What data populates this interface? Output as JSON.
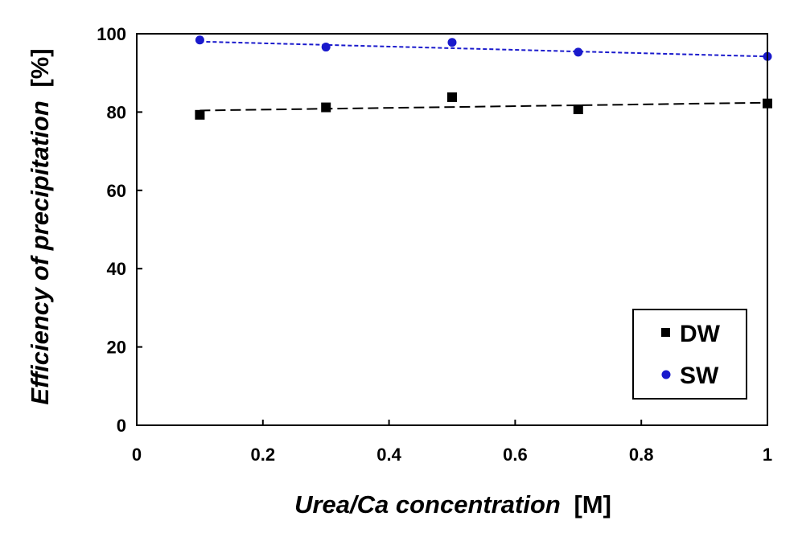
{
  "chart_data": {
    "type": "scatter",
    "title": "",
    "xlabel": {
      "italic": "Urea/Ca concentration",
      "unit": "[M]"
    },
    "ylabel": {
      "italic": "Efficiency of precipitation",
      "unit": "[%]"
    },
    "xlim": [
      0,
      1
    ],
    "ylim": [
      0,
      100
    ],
    "xticks": [
      0,
      0.2,
      0.4,
      0.6,
      0.8,
      1
    ],
    "xtick_labels": [
      "0",
      "0.2",
      "0.4",
      "0.6",
      "0.8",
      "1"
    ],
    "yticks": [
      0,
      20,
      40,
      60,
      80,
      100
    ],
    "ytick_labels": [
      "0",
      "20",
      "40",
      "60",
      "80",
      "100"
    ],
    "grid": false,
    "legend_position": "bottom-right",
    "series": [
      {
        "name": "DW",
        "marker": "square",
        "color": "#000000",
        "x": [
          0.1,
          0.3,
          0.5,
          0.7,
          1.0
        ],
        "y": [
          79.3,
          81.2,
          83.8,
          80.7,
          82.2
        ],
        "trendline": {
          "style": "dashed",
          "from": [
            0.1,
            80.4
          ],
          "to": [
            1.0,
            82.4
          ]
        }
      },
      {
        "name": "SW",
        "marker": "circle",
        "color": "#1a1acc",
        "x": [
          0.1,
          0.3,
          0.5,
          0.7,
          1.0
        ],
        "y": [
          98.4,
          96.6,
          97.8,
          95.3,
          94.2
        ],
        "trendline": {
          "style": "dotted",
          "from": [
            0.1,
            98.0
          ],
          "to": [
            1.0,
            94.2
          ]
        }
      }
    ]
  }
}
